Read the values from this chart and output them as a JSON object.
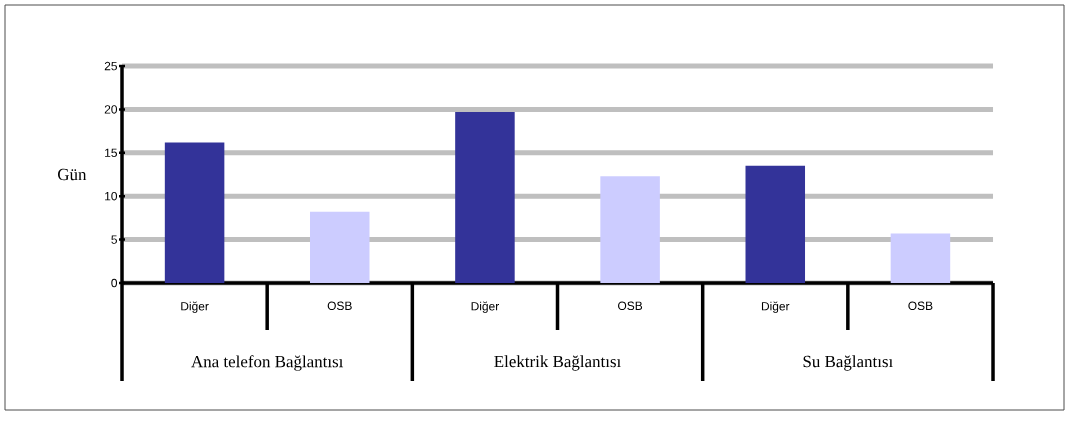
{
  "chart_data": {
    "type": "bar",
    "ylabel": "Gün",
    "categories": [
      "Diğer",
      "OSB",
      "Diğer",
      "OSB",
      "Diğer",
      "OSB"
    ],
    "values": [
      16.2,
      8.2,
      19.7,
      12.3,
      13.5,
      5.7
    ],
    "colors": [
      "#333399",
      "#ccccff",
      "#333399",
      "#ccccff",
      "#333399",
      "#ccccff"
    ],
    "annotations": [
      "Ana telefon Bağlantısı",
      "Elektrik Bağlantısı",
      "Su Bağlantısı"
    ],
    "ylim": [
      0,
      25
    ],
    "yticks": [
      0,
      5,
      10,
      15,
      20,
      25
    ],
    "grid": "y"
  }
}
